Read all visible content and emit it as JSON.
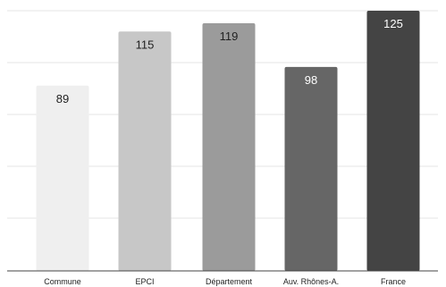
{
  "chart_data": {
    "type": "bar",
    "categories": [
      "Commune",
      "EPCI",
      "Département",
      "Auv. Rhônes-A.",
      "France"
    ],
    "values": [
      89,
      115,
      119,
      98,
      125
    ],
    "bar_colors": [
      "#efefef",
      "#c7c7c7",
      "#9b9b9b",
      "#666666",
      "#444444"
    ],
    "value_label_colors": [
      "#222222",
      "#222222",
      "#222222",
      "#ffffff",
      "#ffffff"
    ],
    "title": "",
    "xlabel": "",
    "ylabel": "",
    "ylim": [
      0,
      125
    ],
    "grid": true,
    "gridline_color": "#e6e6e6",
    "axis_line_color": "#444444",
    "legend": false
  }
}
